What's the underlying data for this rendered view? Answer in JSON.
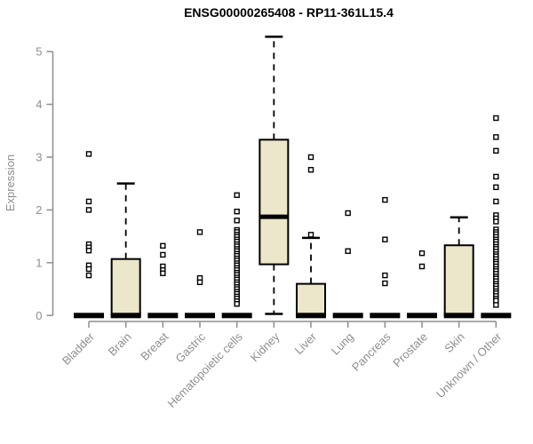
{
  "title": "ENSG00000265408 - RP11-361L15.4",
  "chart_data": {
    "type": "boxplot",
    "title": "ENSG00000265408 - RP11-361L15.4",
    "xlabel": "",
    "ylabel": "Expression",
    "ylim": [
      0,
      5
    ],
    "yticks": [
      0,
      1,
      2,
      3,
      4,
      5
    ],
    "grid": false,
    "legend": "none",
    "box_fill": "#ECE6CA",
    "box_stroke": "#000000",
    "axis_color": "#8e8e8e",
    "text_color": "#8e8e8e",
    "categories": [
      "Bladder",
      "Brain",
      "Breast",
      "Gastric",
      "Hematopoietic cells",
      "Kidney",
      "Liver",
      "Lung",
      "Pancreas",
      "Prostate",
      "Skin",
      "Unknown / Other"
    ],
    "series": [
      {
        "name": "Bladder",
        "q1": 0,
        "median": 0,
        "q3": 0,
        "whisker_low": 0,
        "whisker_high": 0,
        "outliers": [
          3.06,
          2.16,
          2.0,
          1.35,
          1.29,
          1.23,
          0.95,
          0.88,
          0.76
        ]
      },
      {
        "name": "Brain",
        "q1": 0,
        "median": 0,
        "q3": 1.07,
        "whisker_low": 0,
        "whisker_high": 2.5,
        "outliers": []
      },
      {
        "name": "Breast",
        "q1": 0,
        "median": 0,
        "q3": 0,
        "whisker_low": 0,
        "whisker_high": 0,
        "outliers": [
          1.32,
          1.15,
          0.93,
          0.86,
          0.8
        ]
      },
      {
        "name": "Gastric",
        "q1": 0,
        "median": 0,
        "q3": 0,
        "whisker_low": 0,
        "whisker_high": 0,
        "outliers": [
          1.58,
          0.71,
          0.63
        ]
      },
      {
        "name": "Hematopoietic cells",
        "q1": 0,
        "median": 0,
        "q3": 0,
        "whisker_low": 0,
        "whisker_high": 0,
        "outliers": [
          2.28,
          1.97,
          1.8,
          1.62,
          1.58,
          1.53,
          1.49,
          1.44,
          1.4,
          1.35,
          1.31,
          1.26,
          1.22,
          1.17,
          1.13,
          1.08,
          1.04,
          0.99,
          0.95,
          0.9,
          0.86,
          0.81,
          0.77,
          0.72,
          0.68,
          0.63,
          0.59,
          0.54,
          0.5,
          0.45,
          0.41,
          0.36,
          0.32,
          0.27,
          0.22
        ]
      },
      {
        "name": "Kidney",
        "q1": 0.97,
        "median": 1.87,
        "q3": 3.33,
        "whisker_low": 0.03,
        "whisker_high": 5.28,
        "outliers": []
      },
      {
        "name": "Liver",
        "q1": 0,
        "median": 0,
        "q3": 0.6,
        "whisker_low": 0,
        "whisker_high": 1.47,
        "outliers": [
          3.0,
          2.76,
          1.53
        ]
      },
      {
        "name": "Lung",
        "q1": 0,
        "median": 0,
        "q3": 0,
        "whisker_low": 0,
        "whisker_high": 0,
        "outliers": [
          1.94,
          1.22
        ]
      },
      {
        "name": "Pancreas",
        "q1": 0,
        "median": 0,
        "q3": 0,
        "whisker_low": 0,
        "whisker_high": 0,
        "outliers": [
          2.19,
          1.44,
          0.76,
          0.61
        ]
      },
      {
        "name": "Prostate",
        "q1": 0,
        "median": 0,
        "q3": 0,
        "whisker_low": 0,
        "whisker_high": 0,
        "outliers": [
          1.18,
          0.93
        ]
      },
      {
        "name": "Skin",
        "q1": 0,
        "median": 0,
        "q3": 1.33,
        "whisker_low": 0,
        "whisker_high": 1.86,
        "outliers": []
      },
      {
        "name": "Unknown / Other",
        "q1": 0,
        "median": 0,
        "q3": 0,
        "whisker_low": 0,
        "whisker_high": 0,
        "outliers": [
          3.74,
          3.38,
          3.12,
          2.63,
          2.43,
          2.16,
          1.9,
          1.84,
          1.78,
          1.63,
          1.58,
          1.54,
          1.49,
          1.44,
          1.4,
          1.35,
          1.3,
          1.26,
          1.21,
          1.16,
          1.12,
          1.07,
          1.02,
          0.98,
          0.93,
          0.88,
          0.84,
          0.79,
          0.74,
          0.7,
          0.65,
          0.6,
          0.56,
          0.51,
          0.46,
          0.42,
          0.37,
          0.32,
          0.28,
          0.2
        ]
      }
    ]
  }
}
